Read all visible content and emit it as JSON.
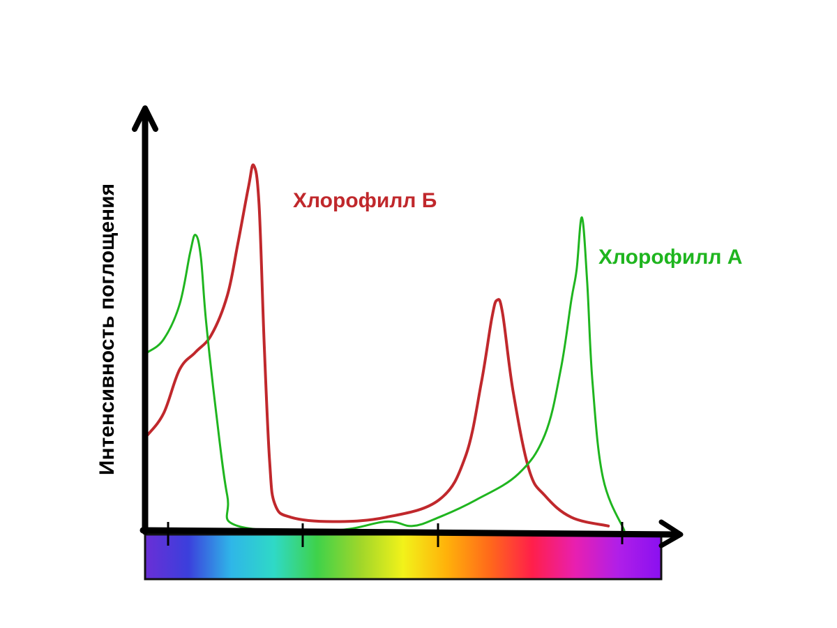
{
  "chart_data": {
    "type": "line",
    "title": "",
    "xlabel": "",
    "ylabel": "Интенсивность поглощения",
    "x_axis": "visible spectrum (violet → red)",
    "grid": false,
    "legend": "inline labels beside curves",
    "spectrum_colors": [
      "#6a2fd6",
      "#3b3fdc",
      "#2fb6e8",
      "#2fd9c6",
      "#3fd24a",
      "#9fd62a",
      "#f2f21a",
      "#ffb20a",
      "#ff6a1a",
      "#ff1f4a",
      "#e81fb0",
      "#b01fe8",
      "#8a10f0"
    ],
    "series": [
      {
        "name": "Хлорофилл Б",
        "color": "#c0282c",
        "points": [
          [
            0,
            0.22
          ],
          [
            3,
            0.27
          ],
          [
            6,
            0.37
          ],
          [
            9,
            0.41
          ],
          [
            12,
            0.45
          ],
          [
            15,
            0.54
          ],
          [
            17,
            0.66
          ],
          [
            19,
            0.79
          ],
          [
            20,
            0.84
          ],
          [
            21,
            0.75
          ],
          [
            22,
            0.42
          ],
          [
            23,
            0.16
          ],
          [
            24,
            0.06
          ],
          [
            27,
            0.03
          ],
          [
            35,
            0.02
          ],
          [
            45,
            0.03
          ],
          [
            55,
            0.07
          ],
          [
            60,
            0.17
          ],
          [
            63,
            0.34
          ],
          [
            65,
            0.49
          ],
          [
            66,
            0.53
          ],
          [
            67,
            0.5
          ],
          [
            69,
            0.32
          ],
          [
            72,
            0.14
          ],
          [
            75,
            0.08
          ],
          [
            80,
            0.03
          ],
          [
            87,
            0.01
          ]
        ]
      },
      {
        "name": "Хлорофилл А",
        "color": "#1fb51f",
        "points": [
          [
            0,
            0.41
          ],
          [
            3,
            0.44
          ],
          [
            6,
            0.52
          ],
          [
            8,
            0.64
          ],
          [
            9,
            0.68
          ],
          [
            10,
            0.63
          ],
          [
            11,
            0.48
          ],
          [
            13,
            0.26
          ],
          [
            15,
            0.08
          ],
          [
            17,
            0.01
          ],
          [
            35,
            0.0
          ],
          [
            45,
            0.02
          ],
          [
            50,
            0.01
          ],
          [
            55,
            0.03
          ],
          [
            62,
            0.07
          ],
          [
            70,
            0.13
          ],
          [
            75,
            0.22
          ],
          [
            78,
            0.37
          ],
          [
            80,
            0.53
          ],
          [
            81,
            0.6
          ],
          [
            82,
            0.72
          ],
          [
            83,
            0.57
          ],
          [
            84,
            0.34
          ],
          [
            86,
            0.12
          ],
          [
            90,
            0.0
          ]
        ]
      }
    ],
    "overlap_color": "#000000"
  },
  "labels": {
    "series_a": "Хлорофилл А",
    "series_b": "Хлорофилл Б",
    "ylabel": "Интенсивность поглощения"
  }
}
